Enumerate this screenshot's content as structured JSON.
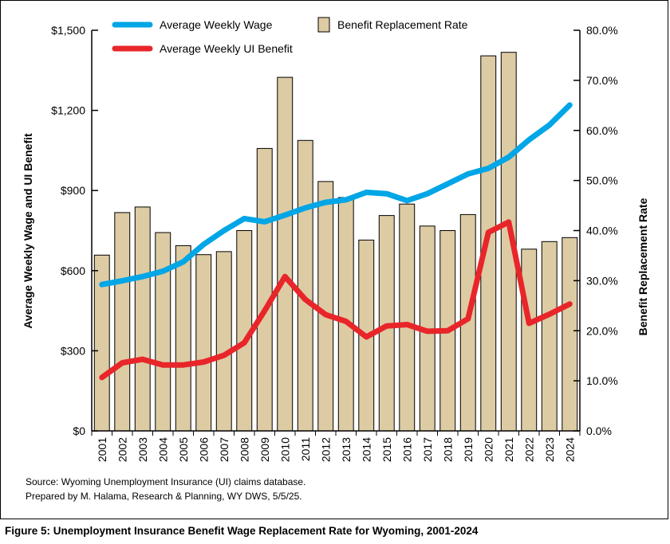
{
  "chart_data": {
    "type": "bar+line",
    "categories": [
      "2001",
      "2002",
      "2003",
      "2004",
      "2005",
      "2006",
      "2007",
      "2008",
      "2009",
      "2010",
      "2011",
      "2012",
      "2013",
      "2014",
      "2015",
      "2016",
      "2017",
      "2018",
      "2019",
      "2020",
      "2021",
      "2022",
      "2023",
      "2024"
    ],
    "ylabel_left": "Average Weekly Wage and UI Benefit",
    "ylabel_right": "Benefit Replacement Rate",
    "left_axis": {
      "min": 0,
      "max": 1500,
      "ticks": [
        0,
        300,
        600,
        900,
        1200,
        1500
      ],
      "tick_labels": [
        "$0",
        "$300",
        "$600",
        "$900",
        "$1,200",
        "$1,500"
      ]
    },
    "right_axis": {
      "min": 0,
      "max": 80,
      "ticks": [
        0,
        10,
        20,
        30,
        40,
        50,
        60,
        70,
        80
      ],
      "tick_labels": [
        "0.0%",
        "10.0%",
        "20.0%",
        "30.0%",
        "40.0%",
        "50.0%",
        "60.0%",
        "70.0%",
        "80.0%"
      ]
    },
    "grid": false,
    "legend_position": "top-left",
    "series": [
      {
        "name": "Average Weekly Wage",
        "type": "line",
        "axis": "left",
        "color": "#00A6E6",
        "values": [
          548,
          562,
          578,
          598,
          633,
          698,
          750,
          795,
          783,
          808,
          835,
          856,
          865,
          893,
          888,
          862,
          888,
          925,
          962,
          983,
          1025,
          1090,
          1145,
          1220
        ]
      },
      {
        "name": "Average Weekly UI Benefit",
        "type": "line",
        "axis": "left",
        "color": "#E8262A",
        "values": [
          200,
          255,
          268,
          247,
          247,
          258,
          283,
          330,
          450,
          578,
          492,
          435,
          410,
          352,
          393,
          398,
          373,
          375,
          420,
          743,
          782,
          403,
          437,
          475
        ]
      },
      {
        "name": "Benefit Replacement Rate",
        "type": "bar",
        "axis": "right",
        "color": "#DDCBA4",
        "values": [
          35.1,
          43.6,
          44.7,
          39.6,
          37.0,
          35.2,
          35.8,
          40.0,
          56.4,
          70.6,
          58.0,
          49.8,
          46.6,
          38.1,
          43.0,
          45.3,
          40.9,
          40.0,
          43.2,
          74.9,
          75.6,
          36.3,
          37.8,
          38.6
        ]
      }
    ]
  },
  "source": {
    "line1": "Source: Wyoming Unemployment Insurance (UI) claims database.",
    "line2": "Prepared by M. Halama, Research & Planning, WY DWS, 5/5/25."
  },
  "caption": "Figure 5: Unemployment Insurance Benefit Wage Replacement Rate for Wyoming, 2001-2024"
}
